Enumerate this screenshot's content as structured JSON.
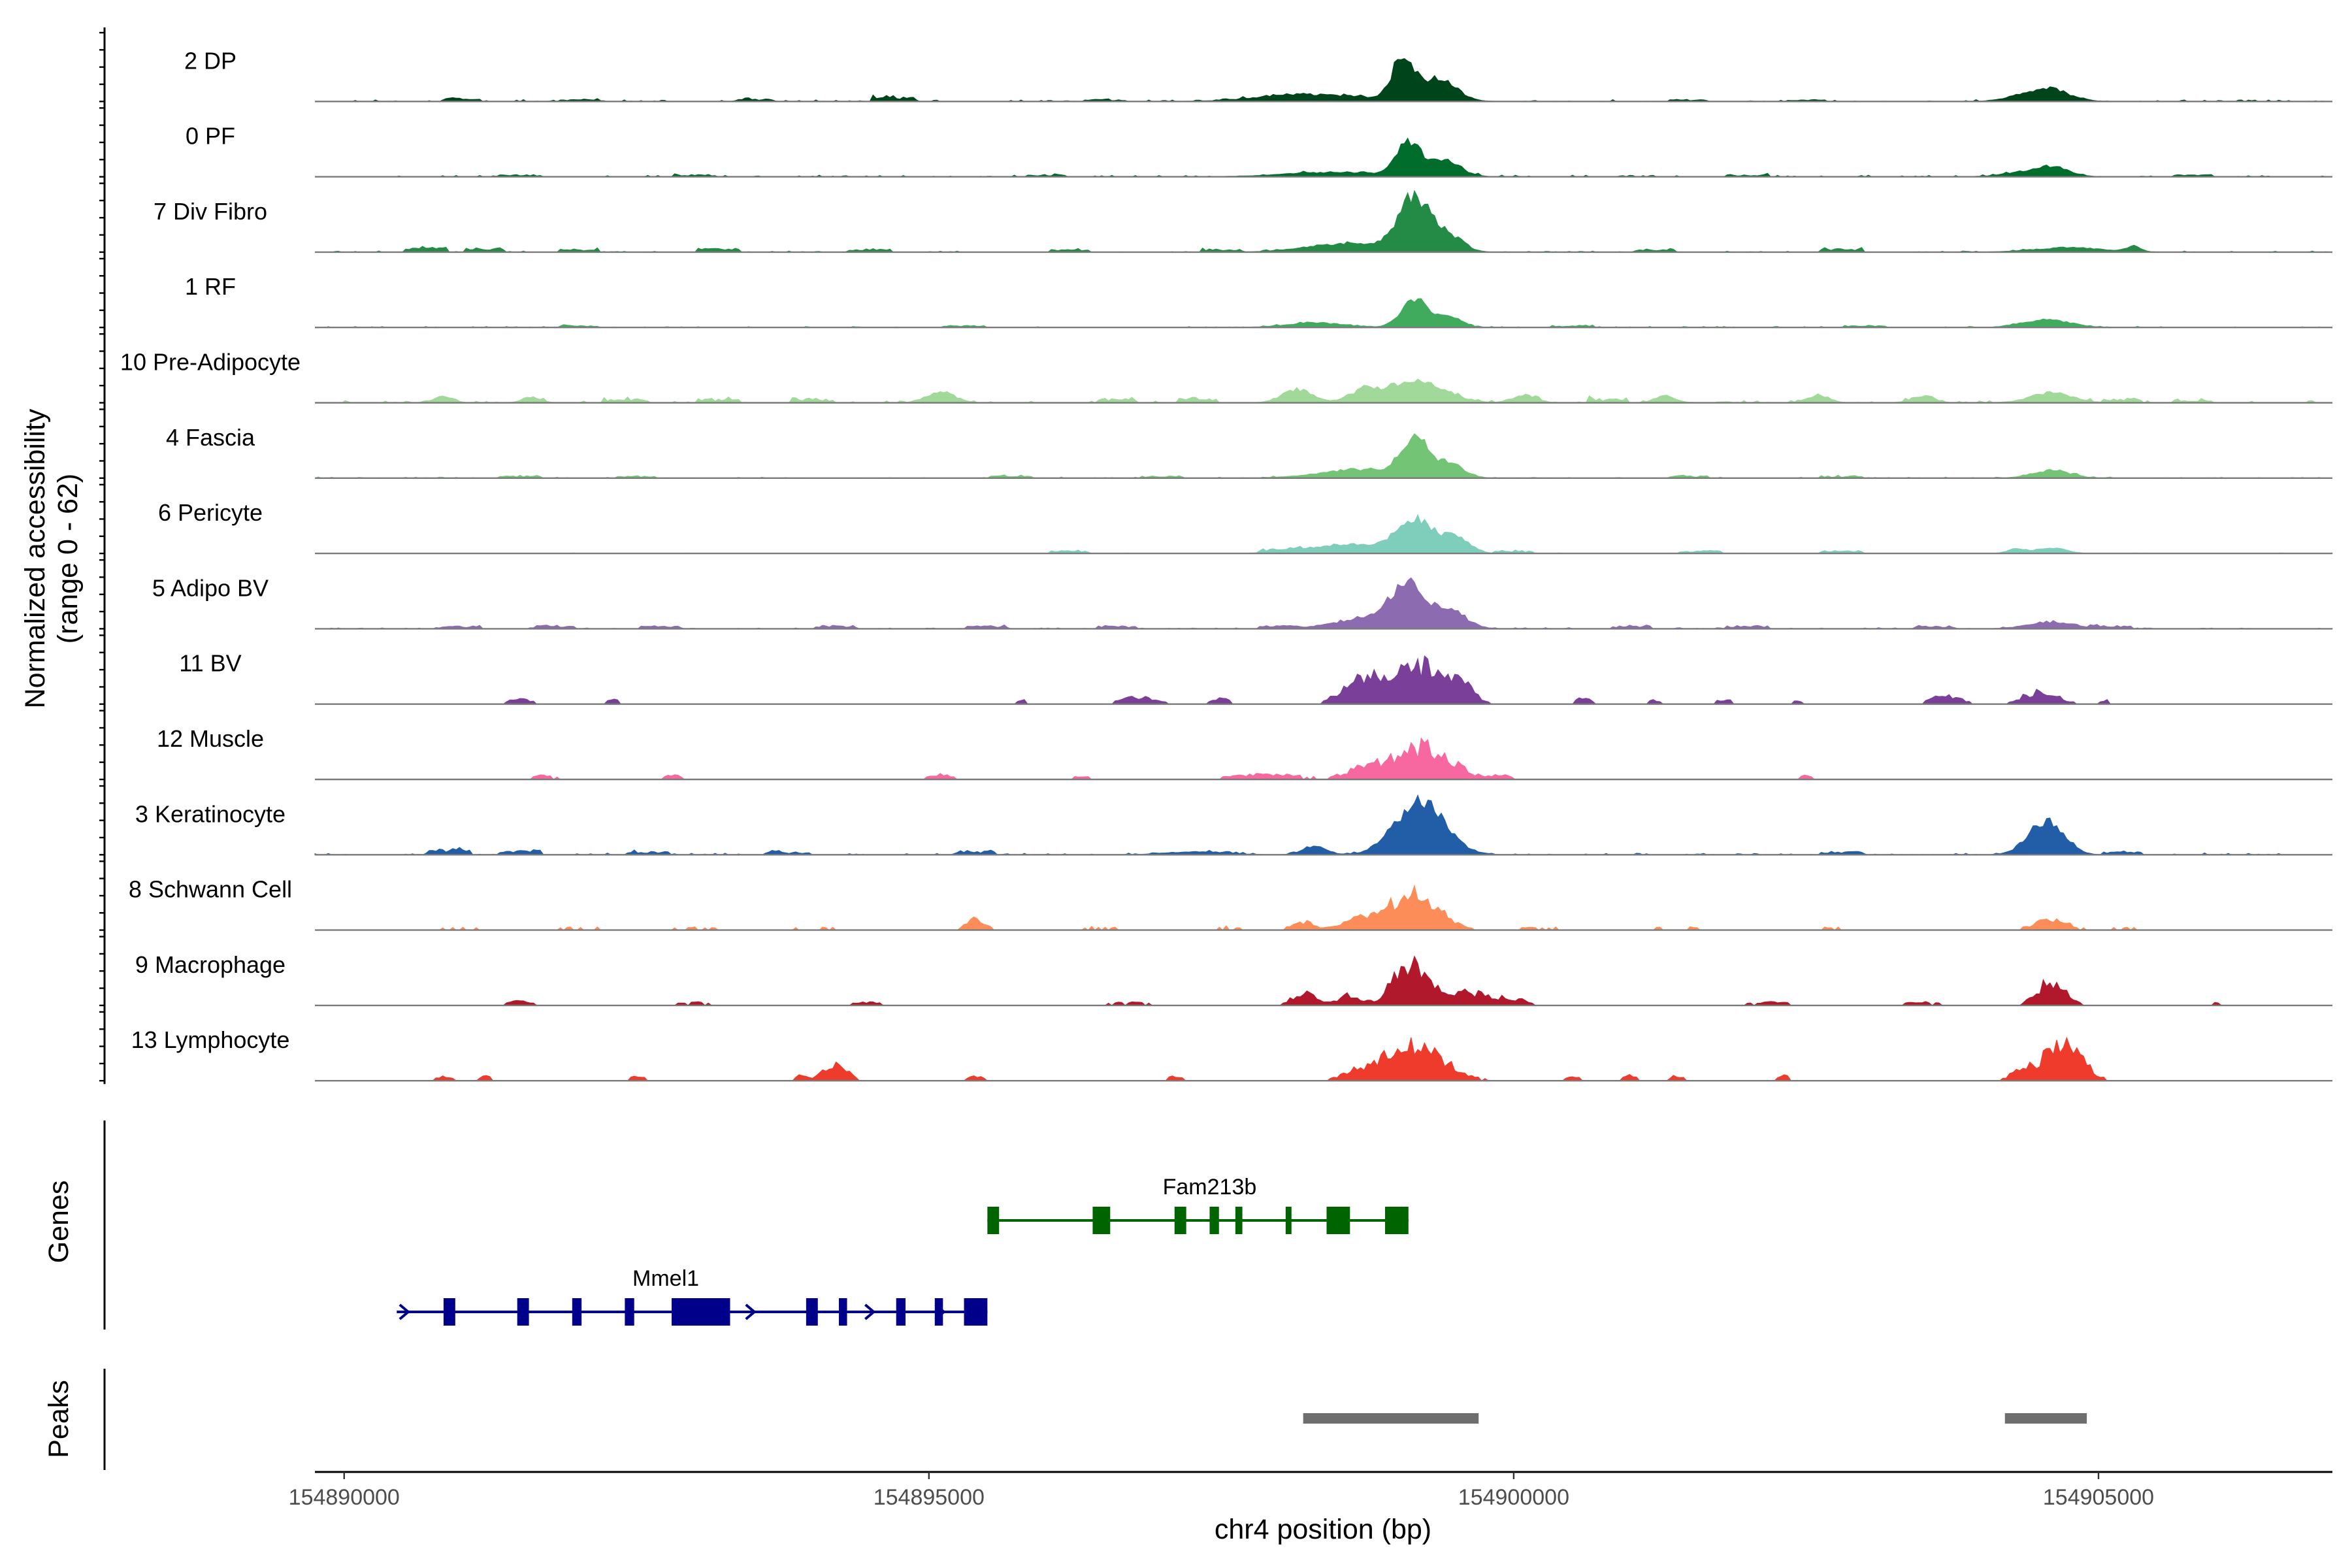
{
  "chart_data": {
    "type": "area",
    "chromosome": "chr4",
    "xlabel": "chr4 position (bp)",
    "ylabel": [
      "Normalized accessibility",
      "(range 0 - 62)"
    ],
    "ylim": [
      0,
      62
    ],
    "xlim": [
      154889750,
      154907000
    ],
    "x_ticks": [
      {
        "value": 154890000,
        "label": "154890000"
      },
      {
        "value": 154895000,
        "label": "154895000"
      },
      {
        "value": 154900000,
        "label": "154900000"
      },
      {
        "value": 154905000,
        "label": "154905000"
      }
    ],
    "panel_titles": {
      "genes": "Genes",
      "peaks": "Peaks"
    },
    "series": [
      {
        "name": "2 DP",
        "color": "#00441b",
        "bg": 1.5,
        "profile": "standard",
        "peaks": [
          [
            154898500,
            500,
            4
          ],
          [
            154899050,
            90,
            36
          ],
          [
            154899350,
            150,
            20
          ],
          [
            154898100,
            350,
            3
          ],
          [
            154904580,
            170,
            11
          ],
          [
            154904300,
            150,
            3
          ]
        ],
        "noise": [
          [
            154891000,
            3
          ],
          [
            154892000,
            2
          ],
          [
            154893500,
            2
          ],
          [
            154894700,
            5
          ],
          [
            154896500,
            2
          ],
          [
            154901500,
            2
          ],
          [
            154902500,
            2
          ]
        ]
      },
      {
        "name": "0 PF",
        "color": "#006d2c",
        "bg": 1.5,
        "profile": "standard",
        "peaks": [
          [
            154898500,
            450,
            4
          ],
          [
            154899100,
            100,
            30
          ],
          [
            154899400,
            140,
            14
          ],
          [
            154904600,
            150,
            9
          ],
          [
            154904300,
            150,
            3
          ]
        ],
        "noise": [
          [
            154891500,
            2
          ],
          [
            154893000,
            2
          ],
          [
            154896000,
            2
          ],
          [
            154902000,
            2
          ],
          [
            154905800,
            2
          ]
        ]
      },
      {
        "name": "7 Div Fibro",
        "color": "#238b45",
        "bg": 1,
        "profile": "standard",
        "peaks": [
          [
            154898600,
            350,
            8
          ],
          [
            154899150,
            130,
            48
          ],
          [
            154899450,
            120,
            14
          ],
          [
            154904750,
            300,
            4
          ],
          [
            154905300,
            60,
            5
          ]
        ],
        "noise": [
          [
            154890700,
            5
          ],
          [
            154891200,
            4
          ],
          [
            154892000,
            3
          ],
          [
            154893200,
            4
          ],
          [
            154894500,
            3
          ],
          [
            154896200,
            3
          ],
          [
            154897500,
            3
          ],
          [
            154901200,
            3
          ],
          [
            154902800,
            3
          ]
        ]
      },
      {
        "name": "1 RF",
        "color": "#41ab5d",
        "bg": 1,
        "profile": "standard",
        "peaks": [
          [
            154898300,
            250,
            4
          ],
          [
            154899150,
            110,
            26
          ],
          [
            154899450,
            110,
            9
          ],
          [
            154904550,
            200,
            7
          ]
        ],
        "noise": [
          [
            154892000,
            2
          ],
          [
            154895300,
            2
          ],
          [
            154900500,
            2
          ],
          [
            154903000,
            2
          ]
        ]
      },
      {
        "name": "10 Pre-Adipocyte",
        "color": "#a1d99b",
        "bg": 2,
        "profile": "broad",
        "peaks": [
          [
            154899150,
            250,
            20
          ],
          [
            154898150,
            130,
            12
          ],
          [
            154898700,
            120,
            8
          ],
          [
            154904600,
            180,
            9
          ],
          [
            154895100,
            120,
            10
          ],
          [
            154900100,
            100,
            7
          ],
          [
            154901300,
            90,
            6
          ],
          [
            154902600,
            100,
            6
          ],
          [
            154903500,
            100,
            6
          ],
          [
            154890850,
            80,
            6
          ],
          [
            154891600,
            80,
            5
          ]
        ],
        "noise": [
          [
            154892400,
            4
          ],
          [
            154893200,
            4
          ],
          [
            154894000,
            4
          ],
          [
            154896600,
            4
          ],
          [
            154897300,
            5
          ],
          [
            154900800,
            4
          ],
          [
            154905200,
            4
          ],
          [
            154905800,
            3
          ]
        ]
      },
      {
        "name": "4 Fascia",
        "color": "#74c476",
        "bg": 1,
        "profile": "standard",
        "peaks": [
          [
            154898700,
            350,
            8
          ],
          [
            154899150,
            110,
            34
          ],
          [
            154899450,
            120,
            13
          ],
          [
            154904600,
            160,
            7
          ]
        ],
        "noise": [
          [
            154891500,
            2
          ],
          [
            154892500,
            2
          ],
          [
            154895700,
            2
          ],
          [
            154897000,
            2
          ],
          [
            154901500,
            2
          ],
          [
            154902800,
            2
          ]
        ]
      },
      {
        "name": "6 Pericyte",
        "color": "#7fcdbb",
        "bg": 0.5,
        "profile": "standard",
        "peaks": [
          [
            154898600,
            350,
            8
          ],
          [
            154899150,
            150,
            30
          ],
          [
            154899500,
            120,
            14
          ],
          [
            154904600,
            120,
            5
          ],
          [
            154904300,
            80,
            4
          ]
        ],
        "noise": [
          [
            154896200,
            3
          ],
          [
            154898000,
            3
          ],
          [
            154900000,
            3
          ],
          [
            154901600,
            3
          ],
          [
            154902800,
            3
          ]
        ]
      },
      {
        "name": "5 Adipo BV",
        "color": "#8c6bb1",
        "bg": 1,
        "profile": "standard",
        "peaks": [
          [
            154898800,
            300,
            10
          ],
          [
            154899100,
            140,
            34
          ],
          [
            154899450,
            140,
            16
          ],
          [
            154904600,
            200,
            6
          ]
        ],
        "noise": [
          [
            154891000,
            3
          ],
          [
            154891800,
            3
          ],
          [
            154892700,
            3
          ],
          [
            154894200,
            3
          ],
          [
            154895500,
            3
          ],
          [
            154896600,
            3
          ],
          [
            154898000,
            3
          ],
          [
            154901000,
            3
          ],
          [
            154902000,
            3
          ],
          [
            154903600,
            3
          ],
          [
            154905100,
            3
          ]
        ]
      },
      {
        "name": "11 BV",
        "color": "#7a3f99",
        "bg": 0,
        "profile": "spiky",
        "peaks": [
          [
            154898750,
            200,
            24
          ],
          [
            154899200,
            200,
            36
          ],
          [
            154899550,
            100,
            20
          ],
          [
            154904500,
            150,
            12
          ],
          [
            154903700,
            120,
            9
          ],
          [
            154891500,
            100,
            5
          ],
          [
            154892300,
            60,
            4
          ],
          [
            154895800,
            60,
            4
          ],
          [
            154896800,
            150,
            7
          ],
          [
            154897500,
            80,
            5
          ],
          [
            154900600,
            60,
            7
          ],
          [
            154901200,
            60,
            4
          ],
          [
            154901800,
            60,
            5
          ],
          [
            154902400,
            60,
            3
          ],
          [
            154905050,
            50,
            4
          ]
        ],
        "noise": []
      },
      {
        "name": "12 Muscle",
        "color": "#f768a1",
        "bg": 0,
        "profile": "spiky",
        "peaks": [
          [
            154899200,
            250,
            32
          ],
          [
            154898700,
            150,
            8
          ],
          [
            154897900,
            300,
            5
          ],
          [
            154899900,
            60,
            5
          ],
          [
            154891700,
            100,
            4
          ],
          [
            154892800,
            100,
            4
          ],
          [
            154895100,
            100,
            5
          ],
          [
            154896300,
            80,
            3
          ],
          [
            154902500,
            60,
            4
          ]
        ],
        "noise": []
      },
      {
        "name": "3 Keratinocyte",
        "color": "#225ea8",
        "bg": 1.5,
        "profile": "standard",
        "peaks": [
          [
            154899200,
            210,
            48
          ],
          [
            154898300,
            100,
            8
          ],
          [
            154904550,
            150,
            30
          ],
          [
            154897300,
            250,
            3
          ]
        ],
        "noise": [
          [
            154890900,
            6
          ],
          [
            154891500,
            4
          ],
          [
            154892600,
            3
          ],
          [
            154893800,
            3
          ],
          [
            154895400,
            4
          ],
          [
            154902800,
            3
          ],
          [
            154905200,
            3
          ]
        ]
      },
      {
        "name": "8 Schwann Cell",
        "color": "#fc8d59",
        "bg": 1,
        "profile": "spiky",
        "peaks": [
          [
            154899150,
            200,
            38
          ],
          [
            154898700,
            150,
            10
          ],
          [
            154898200,
            100,
            8
          ],
          [
            154895400,
            80,
            10
          ],
          [
            154904600,
            150,
            10
          ]
        ],
        "noise": [
          [
            154891000,
            3
          ],
          [
            154892000,
            3
          ],
          [
            154893000,
            3
          ],
          [
            154894000,
            3
          ],
          [
            154896500,
            3
          ],
          [
            154897600,
            3
          ],
          [
            154900200,
            3
          ],
          [
            154901400,
            3
          ],
          [
            154902700,
            3
          ],
          [
            154905200,
            3
          ]
        ]
      },
      {
        "name": "9 Macrophage",
        "color": "#b2182b",
        "bg": 0,
        "profile": "spiky",
        "peaks": [
          [
            154899100,
            140,
            38
          ],
          [
            154899550,
            220,
            14
          ],
          [
            154898600,
            100,
            10
          ],
          [
            154898200,
            100,
            12
          ],
          [
            154904600,
            120,
            24
          ],
          [
            154900000,
            150,
            5
          ],
          [
            154891500,
            100,
            4
          ],
          [
            154893000,
            200,
            3
          ],
          [
            154894500,
            200,
            3
          ],
          [
            154896700,
            200,
            3
          ],
          [
            154902200,
            200,
            3
          ],
          [
            154903500,
            200,
            3
          ],
          [
            154906000,
            60,
            3
          ]
        ],
        "noise": []
      },
      {
        "name": "13 Lymphocyte",
        "color": "#ef3b2c",
        "bg": 0,
        "profile": "spiky",
        "peaks": [
          [
            154899150,
            250,
            34
          ],
          [
            154898700,
            150,
            8
          ],
          [
            154904700,
            150,
            40
          ],
          [
            154904350,
            100,
            10
          ],
          [
            154894200,
            100,
            16
          ],
          [
            154890850,
            60,
            5
          ],
          [
            154891200,
            60,
            5
          ],
          [
            154892500,
            60,
            5
          ],
          [
            154893900,
            60,
            5
          ],
          [
            154895400,
            60,
            5
          ],
          [
            154897100,
            60,
            5
          ],
          [
            154900500,
            60,
            5
          ],
          [
            154901000,
            60,
            5
          ],
          [
            154901400,
            60,
            5
          ],
          [
            154902300,
            60,
            5
          ]
        ],
        "noise": []
      }
    ],
    "genes": [
      {
        "name": "Fam213b",
        "color": "#006400",
        "start": 154895500,
        "end": 154899100,
        "strand": "-",
        "row": 0,
        "exons": [
          [
            154895500,
            154895600
          ],
          [
            154896400,
            154896550
          ],
          [
            154897100,
            154897200
          ],
          [
            154897400,
            154897480
          ],
          [
            154897620,
            154897680
          ],
          [
            154898050,
            154898100
          ],
          [
            154898400,
            154898600
          ],
          [
            154898900,
            154899100
          ]
        ]
      },
      {
        "name": "Mmel1",
        "color": "#00008b",
        "start": 154890450,
        "end": 154895500,
        "strand": "+",
        "row": 1,
        "exons": [
          [
            154890850,
            154890950
          ],
          [
            154891480,
            154891580
          ],
          [
            154891950,
            154892030
          ],
          [
            154892400,
            154892480
          ],
          [
            154892800,
            154893300
          ],
          [
            154893950,
            154894050
          ],
          [
            154894230,
            154894300
          ],
          [
            154894720,
            154894800
          ],
          [
            154895050,
            154895120
          ],
          [
            154895300,
            154895500
          ]
        ],
        "arrows": [
          154890520,
          154891540,
          154893480,
          154894500,
          154895100
        ]
      }
    ],
    "peaks": [
      {
        "start": 154898200,
        "end": 154899700
      },
      {
        "start": 154904200,
        "end": 154904900
      }
    ]
  }
}
